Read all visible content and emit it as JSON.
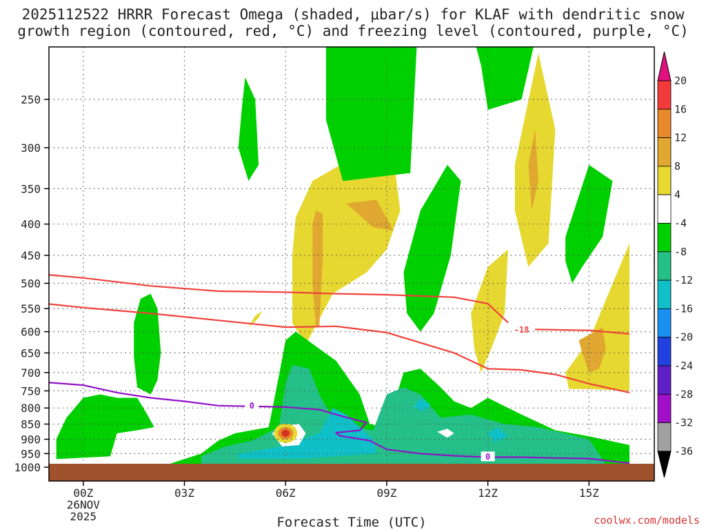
{
  "chart_data": {
    "type": "contour",
    "title_line1": "2025112522 HRRR Forecast Omega (shaded, μbar/s) for KLAF with dendritic snow",
    "title_line2": "growth region (contoured, red, °C) and freezing level (contoured, purple, °C)",
    "xlabel": "Forecast Time (UTC)",
    "credit": "coolwx.com/models",
    "x_ticks": [
      {
        "hour": 2,
        "label": "00Z",
        "sub1": "26NOV",
        "sub2": "2025"
      },
      {
        "hour": 5,
        "label": "03Z"
      },
      {
        "hour": 8,
        "label": "06Z"
      },
      {
        "hour": 11,
        "label": "09Z"
      },
      {
        "hour": 14,
        "label": "12Z"
      },
      {
        "hour": 17,
        "label": "15Z"
      }
    ],
    "x_range_hours": [
      0.2,
      18.2
    ],
    "y_levels": [
      "250",
      "300",
      "350",
      "400",
      "450",
      "500",
      "550",
      "600",
      "650",
      "700",
      "750",
      "800",
      "850",
      "900",
      "950",
      "1000"
    ],
    "y_values_hpa": [
      250,
      300,
      350,
      400,
      450,
      500,
      550,
      600,
      650,
      700,
      750,
      800,
      850,
      900,
      950,
      1000
    ],
    "y_range_hpa": [
      200,
      1000
    ],
    "grid": true,
    "ground_color": "#a0522d",
    "colorbar": {
      "labels": [
        "20",
        "16",
        "12",
        "8",
        "4",
        "-4",
        "-8",
        "-12",
        "-16",
        "-20",
        "-24",
        "-28",
        "-32",
        "-36"
      ],
      "top_arrow_color": "#e0107f",
      "bottom_arrow_color": "#000000",
      "bands": [
        {
          "range": "16 to 20",
          "color": "#f23a3a"
        },
        {
          "range": "12 to 16",
          "color": "#e88a2a"
        },
        {
          "range": "8 to 12",
          "color": "#e0a830"
        },
        {
          "range": "4 to 8",
          "color": "#e6d830"
        },
        {
          "range": "-4 to 4",
          "color": "#ffffff"
        },
        {
          "range": "-8 to -4",
          "color": "#00d000"
        },
        {
          "range": "-12 to -8",
          "color": "#25c08a"
        },
        {
          "range": "-16 to -12",
          "color": "#10c0c8"
        },
        {
          "range": "-20 to -16",
          "color": "#1890f0"
        },
        {
          "range": "-24 to -20",
          "color": "#2040e0"
        },
        {
          "range": "-28 to -24",
          "color": "#6020c8"
        },
        {
          "range": "-32 to -28",
          "color": "#a010c8"
        },
        {
          "range": "-36 to -32",
          "color": "#a0a0a0"
        }
      ]
    },
    "contours": [
      {
        "name": "dendritic-upper (-12 C)",
        "color": "#f0403a",
        "points": [
          [
            0.2,
            480
          ],
          [
            2,
            490
          ],
          [
            4,
            505
          ],
          [
            6,
            515
          ],
          [
            8,
            517
          ],
          [
            9.5,
            520
          ],
          [
            11,
            522
          ],
          [
            13,
            527
          ],
          [
            14,
            540
          ],
          [
            14.6,
            580
          ]
        ]
      },
      {
        "name": "dendritic-lower (-18 C)",
        "color": "#f0403a",
        "label": "-18",
        "label_at": [
          15,
          595
        ],
        "points": [
          [
            0.2,
            535
          ],
          [
            2,
            548
          ],
          [
            4,
            560
          ],
          [
            6,
            575
          ],
          [
            8,
            590
          ],
          [
            9.5,
            588
          ],
          [
            11,
            602
          ],
          [
            13,
            650
          ],
          [
            14,
            690
          ],
          [
            15,
            693
          ],
          [
            16,
            705
          ],
          [
            17,
            730
          ],
          [
            18.2,
            755
          ]
        ]
      },
      {
        "name": "dendritic-lower-tail",
        "color": "#f0403a",
        "points": [
          [
            15.4,
            595
          ],
          [
            17,
            597
          ],
          [
            18.2,
            605
          ]
        ]
      },
      {
        "name": "freezing level (0 C)",
        "color": "#9010c8",
        "label": "0",
        "label_at": [
          7,
          792
        ],
        "label2_at": [
          14,
          960
        ],
        "points": [
          [
            0.2,
            735
          ],
          [
            1,
            727
          ],
          [
            2,
            734
          ],
          [
            3,
            755
          ],
          [
            4,
            770
          ],
          [
            5,
            780
          ],
          [
            6,
            793
          ],
          [
            7,
            795
          ],
          [
            8,
            797
          ],
          [
            9,
            805
          ],
          [
            9.7,
            826
          ],
          [
            10.4,
            845
          ],
          [
            10.2,
            870
          ],
          [
            9.5,
            878
          ],
          [
            9.6,
            888
          ],
          [
            10.5,
            905
          ],
          [
            11,
            935
          ],
          [
            12,
            950
          ],
          [
            13,
            958
          ],
          [
            14,
            963
          ],
          [
            15,
            963
          ],
          [
            16,
            966
          ],
          [
            17,
            968
          ],
          [
            18.2,
            985
          ]
        ]
      }
    ],
    "shaded_regions": [
      {
        "value_range": "4 to 8",
        "color": "#e6d830",
        "points": [
          [
            8.2,
            450
          ],
          [
            8.3,
            390
          ],
          [
            8.8,
            340
          ],
          [
            10.5,
            300
          ],
          [
            11.2,
            310
          ],
          [
            11.4,
            380
          ],
          [
            11,
            440
          ],
          [
            10.4,
            480
          ],
          [
            9.4,
            520
          ],
          [
            8.6,
            630
          ],
          [
            8.2,
            580
          ]
        ]
      },
      {
        "value_range": "8 to 12",
        "color": "#e0a830",
        "points": [
          [
            8.8,
            400
          ],
          [
            8.9,
            380
          ],
          [
            9.1,
            385
          ],
          [
            9.1,
            460
          ],
          [
            9,
            590
          ],
          [
            8.9,
            590
          ],
          [
            8.8,
            500
          ]
        ]
      },
      {
        "value_range": "8 to 12",
        "color": "#e0a830",
        "points": [
          [
            9.8,
            370
          ],
          [
            10.7,
            365
          ],
          [
            11.2,
            410
          ],
          [
            10.6,
            405
          ]
        ]
      },
      {
        "value_range": "-8 to -4",
        "color": "#00d000",
        "points": [
          [
            6.8,
            230
          ],
          [
            7.1,
            250
          ],
          [
            7.2,
            320
          ],
          [
            6.9,
            340
          ],
          [
            6.6,
            300
          ],
          [
            6.7,
            260
          ]
        ]
      },
      {
        "value_range": "4 to 8",
        "color": "#e6d830",
        "points": [
          [
            6.9,
            590
          ],
          [
            7.1,
            565
          ],
          [
            7.3,
            555
          ],
          [
            7.2,
            570
          ]
        ]
      },
      {
        "value_range": "-8 to -4",
        "color": "#00d000",
        "points": [
          [
            9.2,
            200
          ],
          [
            11.9,
            200
          ],
          [
            11.7,
            330
          ],
          [
            9.7,
            340
          ],
          [
            9.2,
            270
          ]
        ]
      },
      {
        "value_range": "-8 to -4",
        "color": "#00d000",
        "points": [
          [
            13.6,
            200
          ],
          [
            15.4,
            200
          ],
          [
            15,
            250
          ],
          [
            14,
            260
          ],
          [
            13.8,
            220
          ]
        ]
      },
      {
        "value_range": "4 to 8",
        "color": "#e6d830",
        "points": [
          [
            14.8,
            320
          ],
          [
            15.5,
            210
          ],
          [
            16,
            280
          ],
          [
            15.8,
            430
          ],
          [
            15.2,
            470
          ],
          [
            14.8,
            380
          ]
        ]
      },
      {
        "value_range": "8 to 12",
        "color": "#e0a830",
        "points": [
          [
            15.2,
            320
          ],
          [
            15.4,
            280
          ],
          [
            15.5,
            340
          ],
          [
            15.3,
            380
          ]
        ]
      },
      {
        "value_range": "-8 to -4",
        "color": "#00d000",
        "points": [
          [
            11.5,
            480
          ],
          [
            12,
            380
          ],
          [
            12.8,
            320
          ],
          [
            13.2,
            340
          ],
          [
            12.9,
            450
          ],
          [
            12.4,
            560
          ],
          [
            12,
            600
          ],
          [
            11.6,
            560
          ]
        ]
      },
      {
        "value_range": "4 to 8",
        "color": "#e6d830",
        "points": [
          [
            13.5,
            560
          ],
          [
            14,
            470
          ],
          [
            14.6,
            440
          ],
          [
            14.5,
            560
          ],
          [
            14.1,
            640
          ],
          [
            13.8,
            700
          ],
          [
            13.6,
            640
          ]
        ]
      },
      {
        "value_range": "-8 to -4",
        "color": "#00d000",
        "points": [
          [
            16.3,
            420
          ],
          [
            17,
            320
          ],
          [
            17.7,
            340
          ],
          [
            17.4,
            420
          ],
          [
            16.8,
            470
          ],
          [
            16.5,
            500
          ],
          [
            16.3,
            460
          ]
        ]
      },
      {
        "value_range": "4 to 8",
        "color": "#e6d830",
        "points": [
          [
            16.3,
            700
          ],
          [
            17,
            620
          ],
          [
            18.2,
            430
          ],
          [
            18.2,
            750
          ],
          [
            17,
            745
          ],
          [
            16.4,
            745
          ]
        ]
      },
      {
        "value_range": "8 to 12",
        "color": "#e0a830",
        "points": [
          [
            16.7,
            620
          ],
          [
            17.4,
            590
          ],
          [
            17.5,
            640
          ],
          [
            17.3,
            690
          ],
          [
            17,
            700
          ],
          [
            16.8,
            650
          ]
        ]
      },
      {
        "value_range": "-8 to -4",
        "color": "#00d000",
        "points": [
          [
            3.5,
            580
          ],
          [
            3.7,
            530
          ],
          [
            4,
            520
          ],
          [
            4.2,
            550
          ],
          [
            4.3,
            650
          ],
          [
            4.2,
            720
          ],
          [
            4,
            760
          ],
          [
            3.6,
            740
          ],
          [
            3.5,
            660
          ]
        ]
      },
      {
        "value_range": "-8 to -4",
        "color": "#00d000",
        "points": [
          [
            1.2,
            900
          ],
          [
            1.5,
            830
          ],
          [
            2,
            770
          ],
          [
            2.5,
            760
          ],
          [
            3,
            770
          ],
          [
            3.6,
            770
          ],
          [
            3.9,
            820
          ],
          [
            4.1,
            860
          ],
          [
            3.6,
            870
          ],
          [
            3,
            880
          ],
          [
            2.8,
            960
          ],
          [
            1.2,
            970
          ]
        ]
      },
      {
        "value_range": "-8 to -4",
        "color": "#00d000",
        "points": [
          [
            4.5,
            990
          ],
          [
            5.5,
            950
          ],
          [
            6,
            905
          ],
          [
            6.5,
            880
          ],
          [
            7.5,
            860
          ],
          [
            7.8,
            710
          ],
          [
            8,
            620
          ],
          [
            8.3,
            600
          ],
          [
            9.5,
            670
          ],
          [
            10.2,
            760
          ],
          [
            10.5,
            850
          ],
          [
            11,
            860
          ],
          [
            11.5,
            700
          ],
          [
            12,
            690
          ],
          [
            12.6,
            740
          ],
          [
            13,
            780
          ],
          [
            13.5,
            800
          ],
          [
            14,
            770
          ],
          [
            15,
            820
          ],
          [
            16,
            870
          ],
          [
            17,
            890
          ],
          [
            18.2,
            920
          ],
          [
            18.2,
            1000
          ],
          [
            4.5,
            1000
          ]
        ]
      },
      {
        "value_range": "-12 to -8",
        "color": "#25c08a",
        "points": [
          [
            5.5,
            960
          ],
          [
            6.2,
            925
          ],
          [
            7,
            905
          ],
          [
            7.8,
            860
          ],
          [
            8,
            730
          ],
          [
            8.2,
            680
          ],
          [
            8.7,
            690
          ],
          [
            9,
            760
          ],
          [
            9.4,
            830
          ],
          [
            10,
            860
          ],
          [
            10.6,
            870
          ],
          [
            11,
            760
          ],
          [
            11.5,
            740
          ],
          [
            12,
            760
          ],
          [
            12.6,
            830
          ],
          [
            13.5,
            820
          ],
          [
            14.5,
            850
          ],
          [
            15.5,
            860
          ],
          [
            17,
            900
          ],
          [
            17.5,
            990
          ],
          [
            5.5,
            990
          ]
        ]
      },
      {
        "value_range": "-16 to -12",
        "color": "#10c0c8",
        "points": [
          [
            6.6,
            950
          ],
          [
            7.4,
            935
          ],
          [
            8,
            920
          ],
          [
            9,
            880
          ],
          [
            9.4,
            800
          ],
          [
            9.8,
            820
          ],
          [
            10.3,
            870
          ],
          [
            10.6,
            900
          ],
          [
            10.7,
            950
          ],
          [
            8.5,
            968
          ],
          [
            6.6,
            968
          ]
        ]
      },
      {
        "value_range": "-16 to -12",
        "color": "#10c0c8",
        "points": [
          [
            11.8,
            800
          ],
          [
            12,
            770
          ],
          [
            12.3,
            790
          ],
          [
            12.1,
            810
          ]
        ]
      },
      {
        "value_range": "-16 to -12",
        "color": "#10c0c8",
        "points": [
          [
            14,
            880
          ],
          [
            14.3,
            860
          ],
          [
            14.6,
            890
          ],
          [
            14.2,
            910
          ]
        ]
      }
    ],
    "white_holes": [
      {
        "points": [
          [
            7.6,
            880
          ],
          [
            7.9,
            855
          ],
          [
            8.4,
            850
          ],
          [
            8.6,
            880
          ],
          [
            8.4,
            920
          ],
          [
            7.9,
            925
          ]
        ]
      },
      {
        "points": [
          [
            12.5,
            875
          ],
          [
            12.8,
            865
          ],
          [
            13.0,
            880
          ],
          [
            12.8,
            895
          ]
        ]
      }
    ],
    "hot_spot": {
      "value_range": "8 to 16",
      "center": [
        8,
        880
      ],
      "colors": [
        "#e6d830",
        "#e88a2a",
        "#d83020"
      ]
    }
  }
}
